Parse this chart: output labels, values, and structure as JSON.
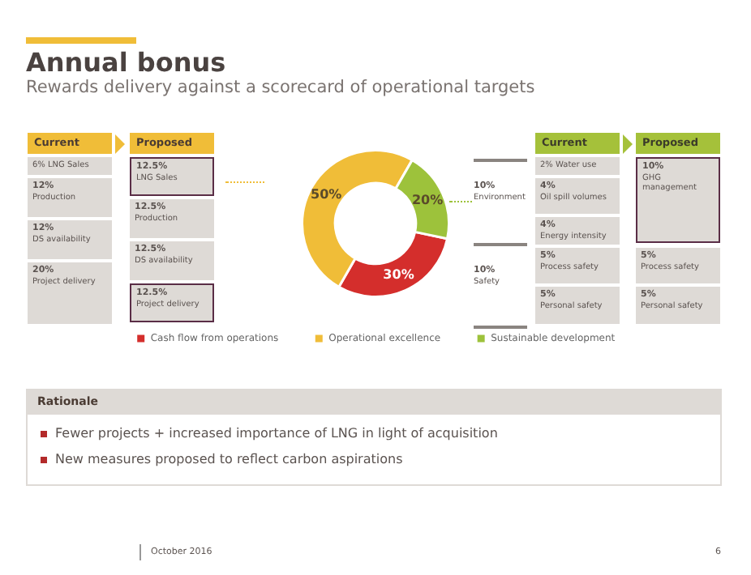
{
  "chart_data": {
    "type": "donut",
    "title": "Annual bonus",
    "subtitle": "Rewards delivery against a scorecard of operational targets",
    "categories": [
      "Cash flow from operations",
      "Operational excellence",
      "Sustainable development"
    ],
    "values": [
      30,
      50,
      20
    ],
    "colors": [
      "#d42e2c",
      "#f0bd38",
      "#9dc23b"
    ],
    "value_labels": [
      "30%",
      "50%",
      "20%"
    ],
    "legend": "bottom",
    "annotations": [
      "Current",
      "Proposed",
      "6% LNG Sales",
      "12%\nProduction",
      "12%\nDS availability",
      "20%\nProject delivery",
      "12.5%\nLNG Sales",
      "12.5%\nProduction",
      "12.5%\nDS availability",
      "12.5%\nProject delivery",
      "10%\nEnvironment",
      "10%\nSafety",
      "Current",
      "Proposed",
      "2% Water use",
      "4%\nOil spill volumes",
      "4%\nEnergy intensity",
      "5%\nProcess safety",
      "5%\nPersonal safety",
      "10%\nGHG management",
      "5%\nProcess safety",
      "5%\nPersonal safety",
      "Rationale",
      "Fewer projects + increased importance of LNG in light of acquisition",
      "New measures proposed to reflect carbon aspirations",
      "October 2016",
      "6"
    ]
  }
}
